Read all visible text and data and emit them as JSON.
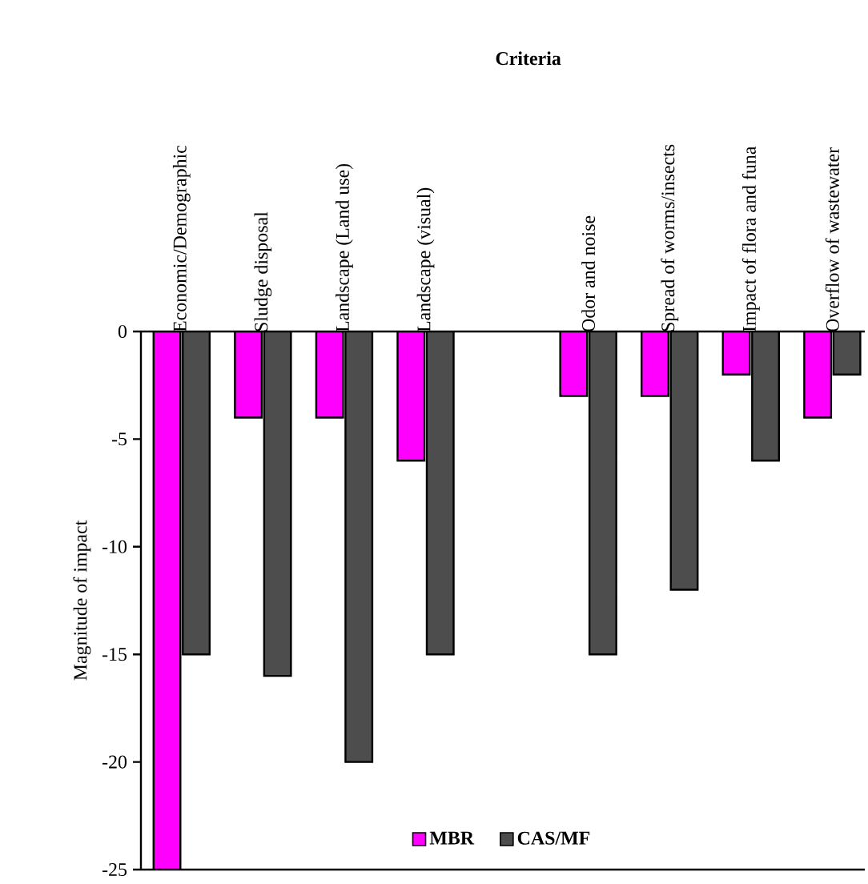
{
  "chart_data": {
    "type": "bar",
    "title": "Criteria",
    "ylabel": "Magnitude of impact",
    "categories": [
      "Economic/Demographic",
      "Sludge disposal",
      "Landscape (Land use)",
      "Landscape (visual)",
      null,
      "Odor and noise",
      "Spread of worms/insects",
      "Impact of flora and funa",
      "Overflow of wastewater"
    ],
    "series": [
      {
        "name": "MBR",
        "color": "#ff00ff",
        "values": [
          -25,
          -4,
          -4,
          -6,
          null,
          -3,
          -3,
          -2,
          -4
        ]
      },
      {
        "name": "CAS/MF",
        "color": "#4d4d4d",
        "values": [
          -15,
          -16,
          -20,
          -15,
          null,
          -15,
          -12,
          -6,
          -2
        ]
      }
    ],
    "ylim": [
      -25,
      0
    ],
    "yticks": [
      0,
      -5,
      -10,
      -15,
      -20,
      -25
    ],
    "legend": "bottom",
    "grid": false
  }
}
